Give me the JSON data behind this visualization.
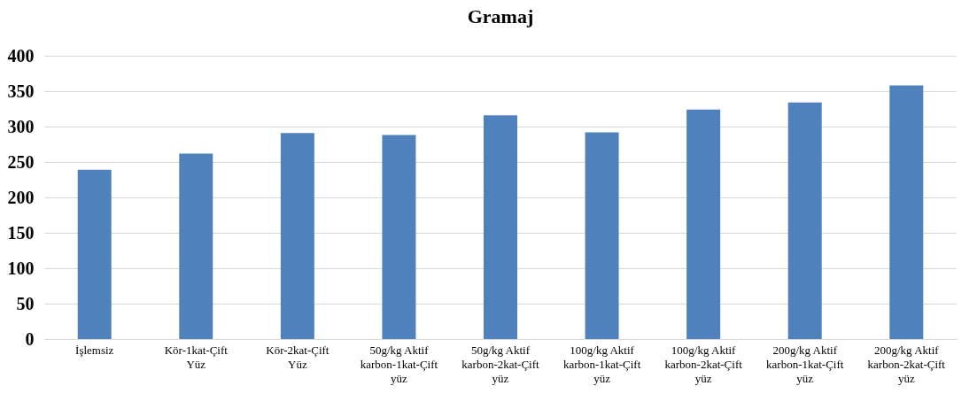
{
  "chart_data": {
    "type": "bar",
    "title": "Gramaj",
    "categories": [
      "İşlemsiz",
      "Kör-1kat-Çift Yüz",
      "Kör-2kat-Çift Yüz",
      "50g/kg Aktif karbon-1kat-Çift yüz",
      "50g/kg Aktif karbon-2kat-Çift yüz",
      "100g/kg Aktif karbon-1kat-Çift yüz",
      "100g/kg Aktif karbon-2kat-Çift yüz",
      "200g/kg Aktif karbon-1kat-Çift yüz",
      "200g/kg Aktif karbon-2kat-Çift yüz"
    ],
    "values": [
      239,
      262,
      291,
      288,
      316,
      292,
      324,
      334,
      358
    ],
    "color": "#4f81bd",
    "ylim": [
      0,
      400
    ],
    "yticks": [
      0,
      50,
      100,
      150,
      200,
      250,
      300,
      350,
      400
    ],
    "grid": "y"
  }
}
